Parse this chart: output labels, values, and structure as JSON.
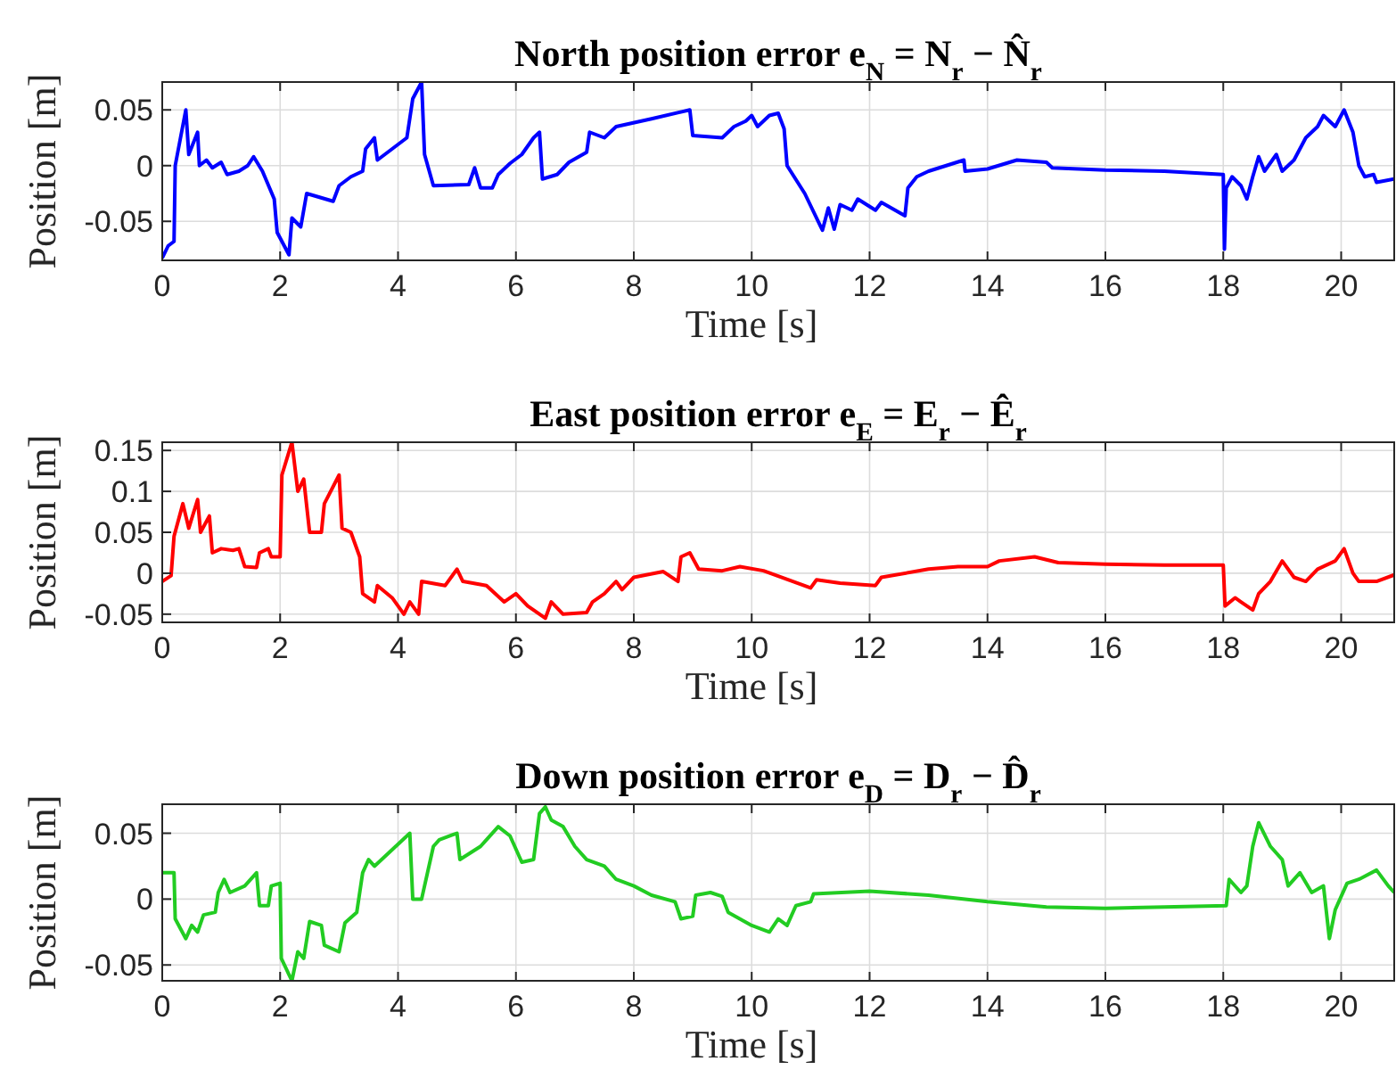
{
  "chart_data": [
    {
      "type": "line",
      "title": "North position error e$_{N}$ = N$_{r}$ − N̂$_{r}$",
      "xlabel": "Time [s]",
      "ylabel": "Position [m]",
      "xlim": [
        0,
        20.9
      ],
      "xticks": [
        0,
        2,
        4,
        6,
        8,
        10,
        12,
        14,
        16,
        18,
        20
      ],
      "ylim": [
        -0.085,
        0.075
      ],
      "yticks": [
        -0.05,
        0,
        0.05
      ],
      "grid": true,
      "series": [
        {
          "color": "#0000ff",
          "x": [
            0,
            0.1,
            0.2,
            0.22,
            0.4,
            0.45,
            0.6,
            0.63,
            0.75,
            0.85,
            1.0,
            1.1,
            1.3,
            1.45,
            1.55,
            1.7,
            1.9,
            1.95,
            2.15,
            2.2,
            2.35,
            2.45,
            2.9,
            3.0,
            3.2,
            3.4,
            3.45,
            3.6,
            3.65,
            4.15,
            4.25,
            4.4,
            4.45,
            4.6,
            5.2,
            5.3,
            5.4,
            5.6,
            5.7,
            5.9,
            6.1,
            6.3,
            6.4,
            6.45,
            6.7,
            6.9,
            7.2,
            7.25,
            7.5,
            7.7,
            8.3,
            8.95,
            9.0,
            9.5,
            9.7,
            9.9,
            10.0,
            10.1,
            10.3,
            10.45,
            10.55,
            10.6,
            10.9,
            11.2,
            11.3,
            11.4,
            11.5,
            11.7,
            11.8,
            12.1,
            12.2,
            12.6,
            12.65,
            12.8,
            13.0,
            13.6,
            13.62,
            14.0,
            14.5,
            15.0,
            15.1,
            16,
            17,
            18,
            18.02,
            18.05,
            18.15,
            18.3,
            18.4,
            18.5,
            18.6,
            18.7,
            18.9,
            19.0,
            19.2,
            19.4,
            19.6,
            19.7,
            19.9,
            20.05,
            20.2,
            20.3,
            20.4,
            20.55,
            20.6,
            20.9
          ],
          "values": [
            -0.083,
            -0.072,
            -0.068,
            0.0,
            0.05,
            0.01,
            0.03,
            0.0,
            0.005,
            -0.002,
            0.003,
            -0.008,
            -0.005,
            0.0,
            0.008,
            -0.005,
            -0.03,
            -0.06,
            -0.08,
            -0.047,
            -0.055,
            -0.025,
            -0.032,
            -0.018,
            -0.01,
            -0.005,
            0.015,
            0.025,
            0.005,
            0.025,
            0.06,
            0.075,
            0.01,
            -0.018,
            -0.017,
            -0.002,
            -0.02,
            -0.02,
            -0.008,
            0.002,
            0.01,
            0.025,
            0.03,
            -0.012,
            -0.008,
            0.003,
            0.012,
            0.03,
            0.025,
            0.035,
            0.042,
            0.05,
            0.027,
            0.025,
            0.035,
            0.04,
            0.045,
            0.035,
            0.045,
            0.047,
            0.033,
            0.0,
            -0.025,
            -0.058,
            -0.038,
            -0.057,
            -0.035,
            -0.04,
            -0.03,
            -0.04,
            -0.033,
            -0.045,
            -0.02,
            -0.01,
            -0.005,
            0.005,
            -0.005,
            -0.003,
            0.005,
            0.003,
            -0.002,
            -0.004,
            -0.005,
            -0.008,
            -0.075,
            -0.02,
            -0.01,
            -0.018,
            -0.03,
            -0.01,
            0.008,
            -0.005,
            0.01,
            -0.005,
            0.005,
            0.025,
            0.035,
            0.045,
            0.035,
            0.05,
            0.03,
            0.0,
            -0.01,
            -0.008,
            -0.015,
            -0.012
          ]
        }
      ]
    },
    {
      "type": "line",
      "title": "East position error e$_{E}$ = E$_{r}$ − Ê$_{r}$",
      "xlabel": "Time [s]",
      "ylabel": "Position [m]",
      "xlim": [
        0,
        20.9
      ],
      "xticks": [
        0,
        2,
        4,
        6,
        8,
        10,
        12,
        14,
        16,
        18,
        20
      ],
      "ylim": [
        -0.06,
        0.16
      ],
      "yticks": [
        -0.05,
        0,
        0.05,
        0.1,
        0.15
      ],
      "grid": true,
      "series": [
        {
          "color": "#ff0000",
          "x": [
            0,
            0.15,
            0.2,
            0.35,
            0.45,
            0.6,
            0.65,
            0.8,
            0.85,
            1.0,
            1.2,
            1.3,
            1.4,
            1.6,
            1.65,
            1.8,
            1.85,
            2.0,
            2.03,
            2.2,
            2.3,
            2.4,
            2.5,
            2.7,
            2.75,
            3.0,
            3.05,
            3.2,
            3.35,
            3.4,
            3.6,
            3.65,
            3.9,
            4.1,
            4.2,
            4.35,
            4.4,
            4.8,
            5.0,
            5.1,
            5.5,
            5.8,
            6.0,
            6.2,
            6.5,
            6.6,
            6.8,
            7.2,
            7.3,
            7.5,
            7.7,
            7.8,
            8.0,
            8.5,
            8.75,
            8.8,
            8.95,
            9.1,
            9.5,
            9.8,
            10.2,
            11.0,
            11.1,
            11.5,
            12.1,
            12.2,
            13.0,
            13.5,
            14.0,
            14.2,
            14.8,
            15.2,
            16,
            17,
            18.0,
            18.03,
            18.2,
            18.3,
            18.5,
            18.6,
            18.8,
            19.0,
            19.2,
            19.4,
            19.6,
            19.9,
            20.05,
            20.2,
            20.3,
            20.6,
            20.9
          ],
          "values": [
            -0.01,
            -0.003,
            0.045,
            0.085,
            0.055,
            0.09,
            0.05,
            0.07,
            0.025,
            0.03,
            0.028,
            0.03,
            0.008,
            0.007,
            0.025,
            0.03,
            0.02,
            0.02,
            0.12,
            0.16,
            0.1,
            0.115,
            0.05,
            0.05,
            0.085,
            0.12,
            0.055,
            0.05,
            0.02,
            -0.025,
            -0.035,
            -0.015,
            -0.03,
            -0.05,
            -0.035,
            -0.05,
            -0.01,
            -0.015,
            0.005,
            -0.01,
            -0.015,
            -0.035,
            -0.025,
            -0.04,
            -0.055,
            -0.035,
            -0.05,
            -0.048,
            -0.035,
            -0.025,
            -0.01,
            -0.02,
            -0.005,
            0.002,
            -0.01,
            0.02,
            0.025,
            0.005,
            0.003,
            0.008,
            0.003,
            -0.018,
            -0.008,
            -0.012,
            -0.015,
            -0.005,
            0.005,
            0.008,
            0.008,
            0.015,
            0.02,
            0.013,
            0.011,
            0.01,
            0.01,
            -0.04,
            -0.03,
            -0.035,
            -0.045,
            -0.025,
            -0.01,
            0.015,
            -0.005,
            -0.01,
            0.005,
            0.015,
            0.03,
            0.0,
            -0.01,
            -0.01,
            -0.002
          ]
        }
      ]
    },
    {
      "type": "line",
      "title": "Down position error e$_{D}$ = D$_{r}$ − D̂$_{r}$",
      "xlabel": "Time [s]",
      "ylabel": "Position [m]",
      "xlim": [
        0,
        20.9
      ],
      "xticks": [
        0,
        2,
        4,
        6,
        8,
        10,
        12,
        14,
        16,
        18,
        20
      ],
      "ylim": [
        -0.062,
        0.072
      ],
      "yticks": [
        -0.05,
        0,
        0.05
      ],
      "grid": true,
      "series": [
        {
          "color": "#22cc22",
          "x": [
            0,
            0.2,
            0.22,
            0.4,
            0.5,
            0.6,
            0.7,
            0.9,
            0.95,
            1.05,
            1.15,
            1.4,
            1.6,
            1.65,
            1.8,
            1.85,
            2.0,
            2.02,
            2.2,
            2.3,
            2.4,
            2.5,
            2.7,
            2.75,
            3.0,
            3.1,
            3.3,
            3.4,
            3.5,
            3.6,
            4.2,
            4.25,
            4.4,
            4.6,
            4.7,
            5.0,
            5.05,
            5.4,
            5.5,
            5.7,
            5.9,
            6.1,
            6.3,
            6.4,
            6.5,
            6.6,
            6.8,
            7.0,
            7.2,
            7.5,
            7.7,
            8.0,
            8.3,
            8.7,
            8.8,
            9.0,
            9.05,
            9.3,
            9.5,
            9.6,
            10.0,
            10.3,
            10.45,
            10.6,
            10.75,
            11.0,
            11.05,
            12,
            13,
            14,
            15,
            16,
            17,
            18.05,
            18.1,
            18.3,
            18.4,
            18.5,
            18.6,
            18.8,
            19.0,
            19.1,
            19.3,
            19.5,
            19.7,
            19.8,
            19.9,
            20.1,
            20.3,
            20.6,
            20.8,
            20.9
          ],
          "values": [
            0.02,
            0.02,
            -0.015,
            -0.03,
            -0.02,
            -0.025,
            -0.012,
            -0.01,
            0.005,
            0.015,
            0.005,
            0.01,
            0.02,
            -0.005,
            -0.005,
            0.01,
            0.012,
            -0.045,
            -0.062,
            -0.04,
            -0.045,
            -0.017,
            -0.02,
            -0.035,
            -0.04,
            -0.018,
            -0.01,
            0.02,
            0.03,
            0.025,
            0.05,
            0.0,
            0.0,
            0.04,
            0.045,
            0.05,
            0.03,
            0.04,
            0.045,
            0.055,
            0.048,
            0.028,
            0.03,
            0.065,
            0.07,
            0.06,
            0.055,
            0.04,
            0.03,
            0.025,
            0.015,
            0.01,
            0.003,
            -0.002,
            -0.015,
            -0.013,
            0.003,
            0.005,
            0.002,
            -0.01,
            -0.02,
            -0.025,
            -0.015,
            -0.02,
            -0.005,
            -0.002,
            0.004,
            0.006,
            0.003,
            -0.002,
            -0.006,
            -0.007,
            -0.006,
            -0.005,
            0.015,
            0.005,
            0.01,
            0.04,
            0.058,
            0.04,
            0.03,
            0.01,
            0.02,
            0.005,
            0.01,
            -0.03,
            -0.008,
            0.012,
            0.015,
            0.022,
            0.01,
            0.005
          ]
        }
      ]
    }
  ]
}
